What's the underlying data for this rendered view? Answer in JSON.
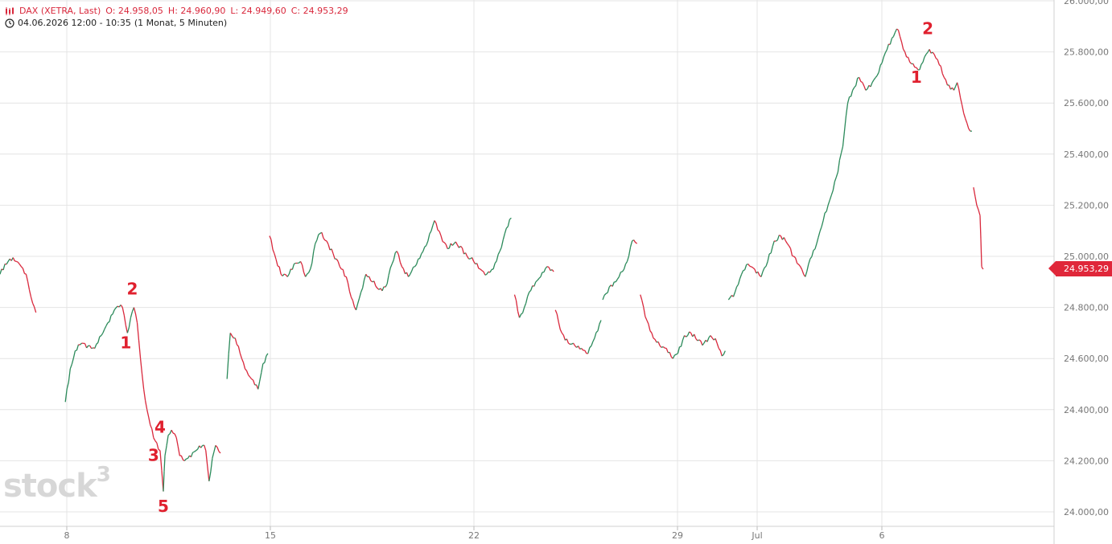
{
  "header": {
    "instrument": "DAX (XETRA, Last)",
    "open": "O: 24.958,05",
    "high": "H: 24.960,90",
    "low": "L: 24.949,60",
    "close": "C: 24.953,29",
    "range_info": "04.06.2026 12:00 - 10:35",
    "interval": "(1 Monat, 5 Minuten)",
    "chart_icon": "candlestick-icon",
    "time_icon": "clock-icon"
  },
  "watermark": "stock",
  "watermark_sup": "3",
  "last_price_label": "24.953,29",
  "colors": {
    "up": "#2b8a5a",
    "down": "#d9283c",
    "accent": "#e0273a",
    "grid": "#e4e4e4",
    "axis_text": "#777777",
    "annotation": "#e0202e"
  },
  "chart_data": {
    "type": "line",
    "title": "DAX (XETRA, Last)",
    "y_tick_labels": [
      "24.000,00",
      "24.200,00",
      "24.400,00",
      "24.600,00",
      "24.800,00",
      "25.000,00",
      "25.200,00",
      "25.400,00",
      "25.600,00",
      "25.800,00",
      "26.000,00"
    ],
    "y_ticks": [
      24000,
      24200,
      24400,
      24600,
      24800,
      25000,
      25200,
      25400,
      25600,
      25800,
      26000
    ],
    "x_tick_labels": [
      "8",
      "15",
      "22",
      "29",
      "Jul",
      "6"
    ],
    "ylim": [
      23990,
      26000
    ],
    "grid": true,
    "series": [
      {
        "segments": [
          [
            [
              0,
              24930
            ],
            [
              0.3,
              24970
            ],
            [
              0.6,
              24990
            ],
            [
              1.0,
              24980
            ],
            [
              1.3,
              24960
            ],
            [
              1.6,
              24930
            ],
            [
              1.9,
              24840
            ],
            [
              2.2,
              24780
            ]
          ],
          [
            [
              4.0,
              24430
            ],
            [
              4.3,
              24560
            ],
            [
              4.6,
              24630
            ],
            [
              5.0,
              24660
            ],
            [
              5.4,
              24650
            ],
            [
              5.8,
              24640
            ],
            [
              6.2,
              24690
            ],
            [
              6.6,
              24740
            ],
            [
              7.0,
              24790
            ],
            [
              7.4,
              24810
            ],
            [
              7.6,
              24770
            ],
            [
              7.8,
              24700
            ],
            [
              8.0,
              24760
            ],
            [
              8.2,
              24800
            ],
            [
              8.4,
              24740
            ],
            [
              8.6,
              24600
            ],
            [
              8.8,
              24480
            ],
            [
              9.0,
              24400
            ],
            [
              9.2,
              24340
            ],
            [
              9.4,
              24290
            ],
            [
              9.6,
              24270
            ],
            [
              9.8,
              24240
            ],
            [
              10.0,
              24080
            ],
            [
              10.1,
              24220
            ],
            [
              10.3,
              24300
            ],
            [
              10.5,
              24320
            ],
            [
              10.8,
              24290
            ],
            [
              11.0,
              24220
            ],
            [
              11.3,
              24200
            ],
            [
              11.6,
              24220
            ],
            [
              12.0,
              24240
            ],
            [
              12.4,
              24260
            ],
            [
              12.6,
              24240
            ],
            [
              12.8,
              24120
            ],
            [
              13.0,
              24210
            ],
            [
              13.2,
              24260
            ],
            [
              13.5,
              24230
            ]
          ],
          [
            [
              13.9,
              24520
            ],
            [
              14.1,
              24700
            ],
            [
              14.4,
              24680
            ],
            [
              14.7,
              24620
            ],
            [
              15.0,
              24560
            ],
            [
              15.4,
              24520
            ],
            [
              15.8,
              24480
            ],
            [
              16.1,
              24580
            ],
            [
              16.4,
              24620
            ]
          ],
          [
            [
              16.5,
              25080
            ],
            [
              16.8,
              25010
            ],
            [
              17.2,
              24930
            ],
            [
              17.6,
              24920
            ],
            [
              18.0,
              24970
            ],
            [
              18.4,
              24980
            ],
            [
              18.7,
              24920
            ],
            [
              19.0,
              24950
            ],
            [
              19.3,
              25050
            ],
            [
              19.6,
              25090
            ],
            [
              20.0,
              25060
            ],
            [
              20.4,
              25010
            ],
            [
              20.8,
              24960
            ],
            [
              21.2,
              24920
            ],
            [
              21.5,
              24840
            ],
            [
              21.8,
              24790
            ],
            [
              22.1,
              24860
            ],
            [
              22.4,
              24930
            ],
            [
              22.8,
              24900
            ],
            [
              23.2,
              24870
            ],
            [
              23.6,
              24880
            ],
            [
              24.0,
              24970
            ],
            [
              24.3,
              25020
            ],
            [
              24.6,
              24960
            ],
            [
              25.0,
              24920
            ],
            [
              25.4,
              24960
            ],
            [
              25.8,
              25010
            ],
            [
              26.2,
              25060
            ],
            [
              26.6,
              25140
            ],
            [
              27.0,
              25080
            ],
            [
              27.4,
              25030
            ],
            [
              27.8,
              25050
            ],
            [
              28.2,
              25040
            ],
            [
              28.6,
              25000
            ],
            [
              29.0,
              24980
            ],
            [
              29.4,
              24950
            ],
            [
              29.8,
              24930
            ],
            [
              30.2,
              24950
            ],
            [
              30.6,
              25020
            ],
            [
              31.0,
              25110
            ],
            [
              31.3,
              25150
            ]
          ],
          [
            [
              31.5,
              24850
            ],
            [
              31.8,
              24760
            ],
            [
              32.1,
              24800
            ],
            [
              32.4,
              24860
            ],
            [
              32.8,
              24900
            ],
            [
              33.1,
              24920
            ],
            [
              33.5,
              24960
            ],
            [
              33.9,
              24940
            ]
          ],
          [
            [
              34.0,
              24790
            ],
            [
              34.4,
              24700
            ],
            [
              34.8,
              24660
            ],
            [
              35.2,
              24650
            ],
            [
              35.6,
              24640
            ],
            [
              36.0,
              24620
            ],
            [
              36.4,
              24680
            ],
            [
              36.8,
              24750
            ]
          ],
          [
            [
              36.9,
              24830
            ],
            [
              37.3,
              24880
            ],
            [
              37.7,
              24900
            ],
            [
              38.1,
              24940
            ],
            [
              38.4,
              24980
            ],
            [
              38.7,
              25060
            ],
            [
              39.0,
              25050
            ]
          ],
          [
            [
              39.2,
              24850
            ],
            [
              39.6,
              24750
            ],
            [
              40.0,
              24680
            ],
            [
              40.4,
              24650
            ],
            [
              40.8,
              24640
            ],
            [
              41.2,
              24600
            ],
            [
              41.5,
              24620
            ],
            [
              41.9,
              24690
            ],
            [
              42.3,
              24700
            ],
            [
              42.7,
              24670
            ],
            [
              43.1,
              24660
            ],
            [
              43.5,
              24690
            ],
            [
              43.9,
              24660
            ],
            [
              44.2,
              24610
            ],
            [
              44.4,
              24630
            ]
          ],
          [
            [
              44.6,
              24830
            ],
            [
              45.0,
              24860
            ],
            [
              45.4,
              24930
            ],
            [
              45.8,
              24970
            ],
            [
              46.2,
              24950
            ],
            [
              46.6,
              24920
            ],
            [
              47.0,
              24980
            ],
            [
              47.4,
              25060
            ],
            [
              47.8,
              25080
            ],
            [
              48.2,
              25050
            ],
            [
              48.6,
              25000
            ],
            [
              49.0,
              24960
            ],
            [
              49.3,
              24920
            ],
            [
              49.6,
              24990
            ],
            [
              50.0,
              25050
            ],
            [
              50.4,
              25140
            ],
            [
              50.8,
              25220
            ],
            [
              51.2,
              25310
            ],
            [
              51.6,
              25430
            ],
            [
              51.9,
              25600
            ],
            [
              52.2,
              25650
            ],
            [
              52.6,
              25700
            ],
            [
              53.0,
              25650
            ],
            [
              53.4,
              25680
            ],
            [
              53.8,
              25720
            ],
            [
              54.1,
              25780
            ],
            [
              54.4,
              25830
            ],
            [
              54.7,
              25860
            ],
            [
              54.9,
              25890
            ],
            [
              55.1,
              25860
            ],
            [
              55.4,
              25800
            ],
            [
              55.7,
              25760
            ],
            [
              56.0,
              25740
            ],
            [
              56.3,
              25730
            ],
            [
              56.6,
              25780
            ],
            [
              56.9,
              25810
            ],
            [
              57.2,
              25790
            ],
            [
              57.5,
              25750
            ],
            [
              57.8,
              25700
            ],
            [
              58.1,
              25670
            ],
            [
              58.4,
              25650
            ],
            [
              58.6,
              25680
            ],
            [
              58.8,
              25620
            ],
            [
              59.0,
              25560
            ],
            [
              59.3,
              25500
            ],
            [
              59.5,
              25490
            ]
          ],
          [
            [
              59.6,
              25270
            ],
            [
              59.8,
              25200
            ],
            [
              60.0,
              25160
            ],
            [
              60.1,
              24960
            ],
            [
              60.2,
              24950
            ]
          ]
        ]
      }
    ],
    "annotations": [
      {
        "label": "2",
        "x": 8.1,
        "y": 24850
      },
      {
        "label": "1",
        "x": 7.7,
        "y": 24640
      },
      {
        "label": "4",
        "x": 9.8,
        "y": 24310
      },
      {
        "label": "3",
        "x": 9.4,
        "y": 24200
      },
      {
        "label": "5",
        "x": 10.0,
        "y": 24000
      },
      {
        "label": "2",
        "x": 56.8,
        "y": 25870
      },
      {
        "label": "1",
        "x": 56.1,
        "y": 25680
      }
    ]
  }
}
